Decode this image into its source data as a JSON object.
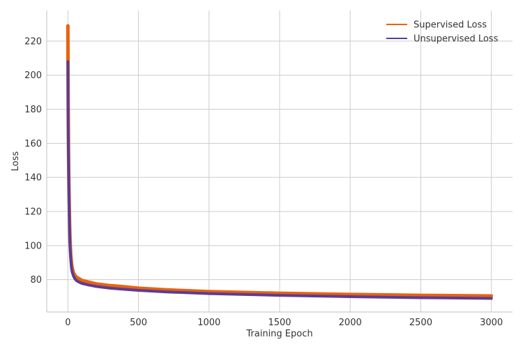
{
  "chart_data": {
    "type": "line",
    "title": "",
    "xlabel": "Training Epoch",
    "ylabel": "Loss",
    "xlim": [
      -150,
      3150
    ],
    "ylim": [
      61,
      238
    ],
    "xticks": [
      0,
      500,
      1000,
      1500,
      2000,
      2500,
      3000
    ],
    "yticks": [
      80,
      100,
      120,
      140,
      160,
      180,
      200,
      220
    ],
    "grid": true,
    "legend_position": "top-right",
    "series": [
      {
        "name": "Supervised Loss",
        "color": "#e8630f",
        "x": [
          0,
          2,
          4,
          6,
          8,
          10,
          12,
          15,
          20,
          25,
          30,
          40,
          50,
          60,
          80,
          100,
          150,
          200,
          300,
          400,
          500,
          700,
          1000,
          1500,
          2000,
          2500,
          3000
        ],
        "y": [
          229,
          184,
          159,
          143,
          131,
          122,
          113,
          103,
          95,
          90,
          87,
          84,
          82.5,
          81.5,
          80.5,
          79.5,
          78.5,
          77.5,
          76.5,
          75.8,
          75.0,
          74.0,
          73.0,
          72.0,
          71.3,
          70.8,
          70.4
        ]
      },
      {
        "name": "Unsupervised Loss",
        "color": "#5b3c96",
        "x": [
          0,
          2,
          4,
          6,
          8,
          10,
          12,
          15,
          20,
          25,
          30,
          40,
          50,
          60,
          80,
          100,
          150,
          200,
          300,
          400,
          500,
          700,
          1000,
          1500,
          2000,
          2500,
          3000
        ],
        "y": [
          208,
          170,
          155,
          140,
          128,
          118,
          110,
          100,
          92,
          87,
          84.5,
          82,
          80.5,
          79.5,
          78.5,
          77.8,
          76.8,
          76.0,
          75.0,
          74.3,
          73.7,
          72.8,
          71.8,
          70.8,
          70.0,
          69.4,
          69.0
        ]
      }
    ]
  }
}
